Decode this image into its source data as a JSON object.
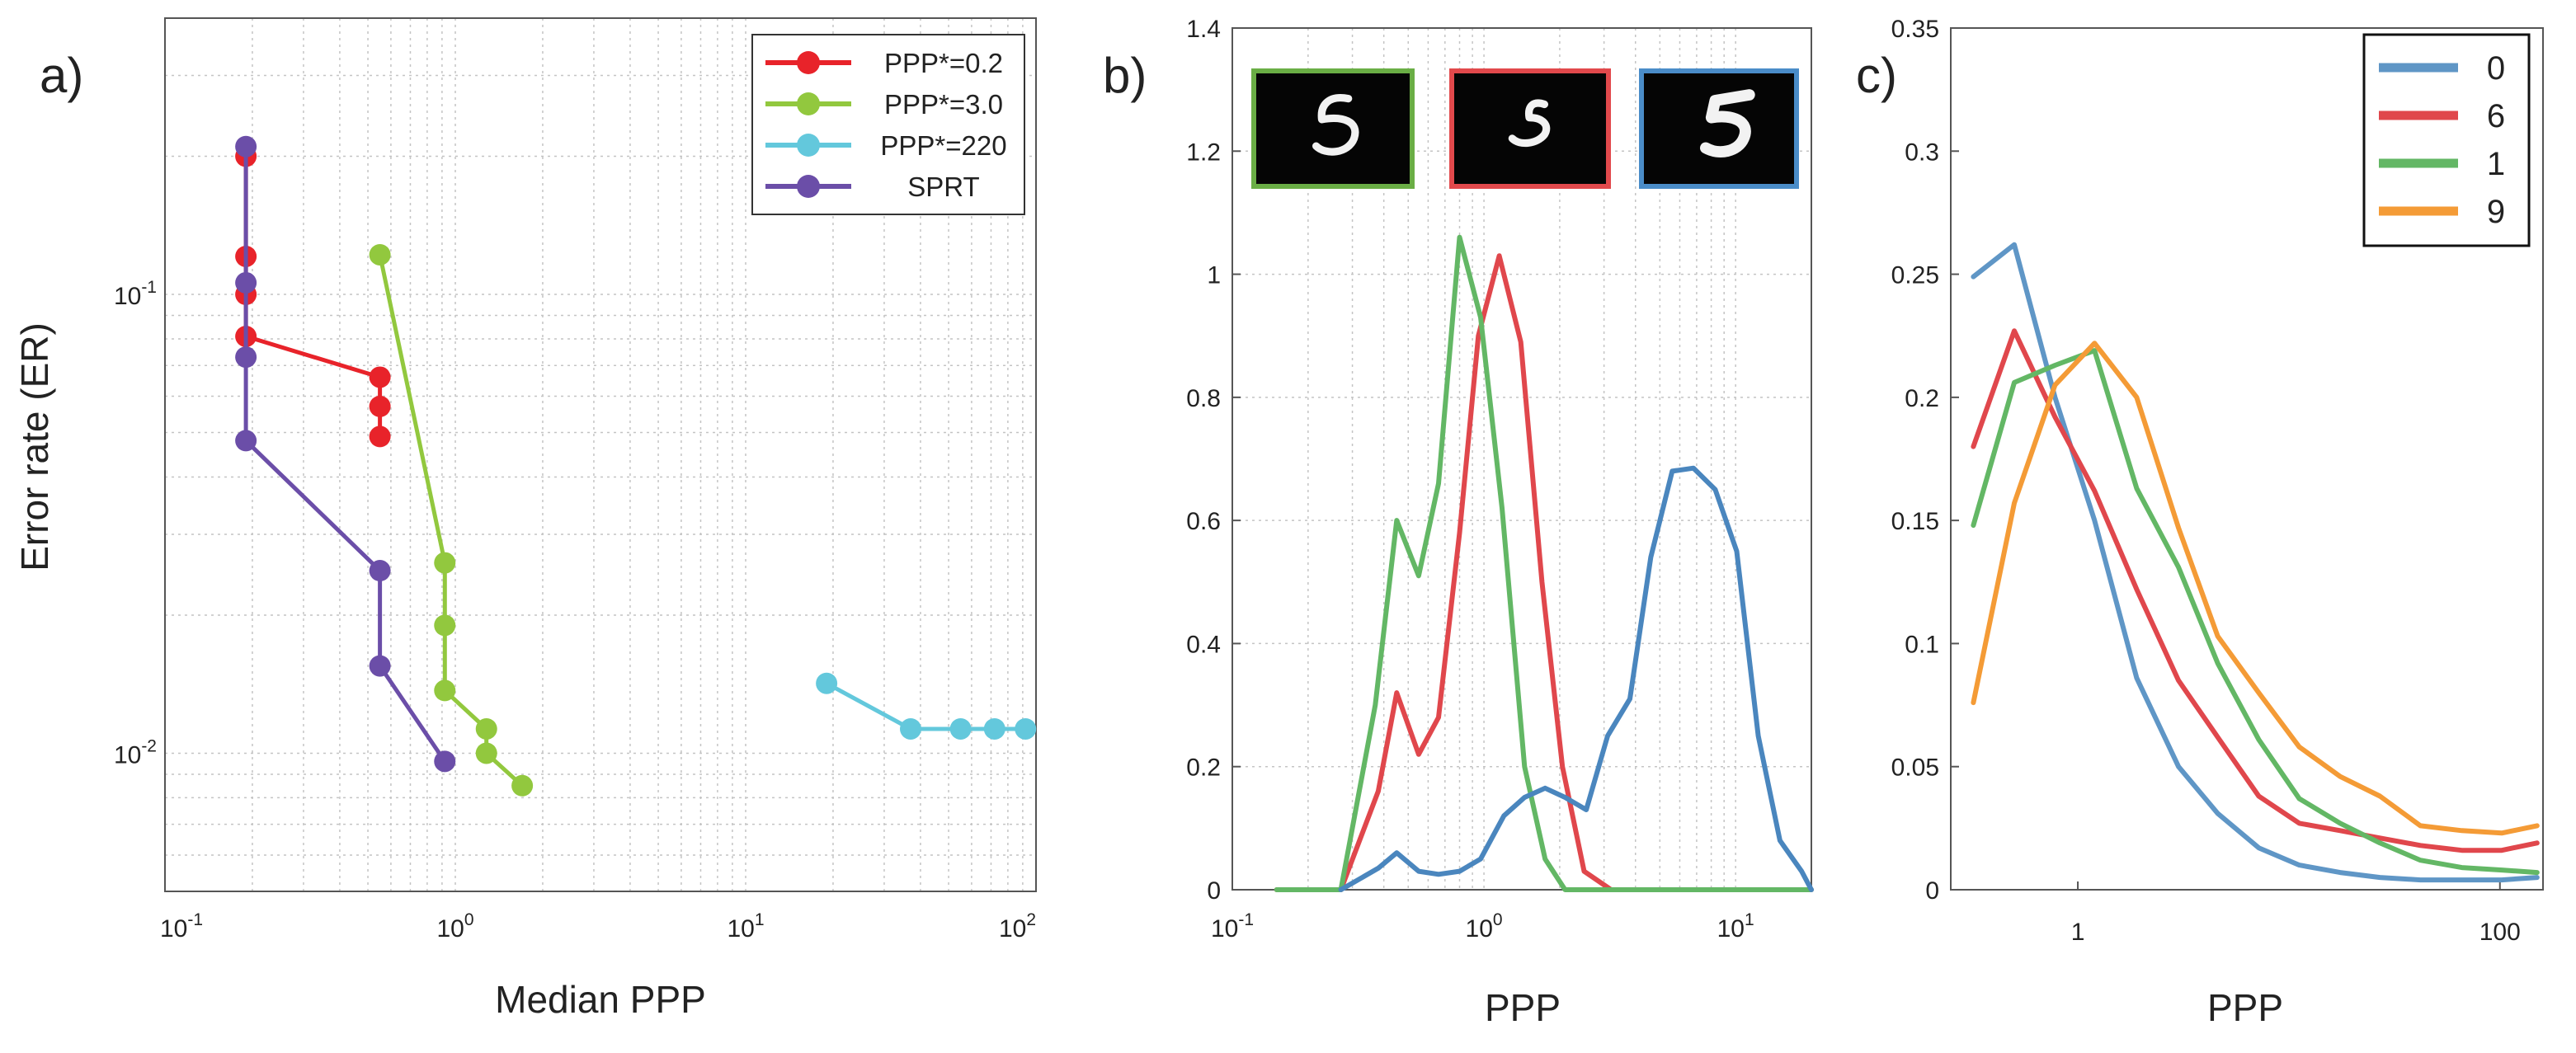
{
  "panels": {
    "a": {
      "letter": "a)",
      "xlabel": "Median PPP",
      "ylabel": "Error rate (ER)"
    },
    "b": {
      "letter": "b)",
      "xlabel": "PPP"
    },
    "c": {
      "letter": "c)",
      "xlabel": "PPP"
    }
  },
  "chart_data": [
    {
      "type": "line",
      "panel": "a",
      "xlabel": "Median PPP",
      "ylabel": "Error rate (ER)",
      "xscale": "log",
      "yscale": "log",
      "xlim": [
        0.1,
        100
      ],
      "ylim": [
        0.005,
        0.4
      ],
      "grid": true,
      "legend_position": "top-right",
      "x_ticks": [
        {
          "base": "10",
          "exp": "-1"
        },
        {
          "base": "10",
          "exp": "0"
        },
        {
          "base": "10",
          "exp": "1"
        },
        {
          "base": "10",
          "exp": "2"
        }
      ],
      "y_ticks": [
        {
          "value": 0.01,
          "base": "10",
          "exp": "-2"
        },
        {
          "value": 0.1,
          "base": "10",
          "exp": "-1"
        }
      ],
      "series": [
        {
          "name": "PPP*=0.2",
          "color": "#e8232a",
          "points": [
            [
              0.19,
              0.2
            ],
            [
              0.19,
              0.121
            ],
            [
              0.19,
              0.1
            ],
            [
              0.19,
              0.081
            ],
            [
              0.55,
              0.066
            ],
            [
              0.55,
              0.057
            ],
            [
              0.55,
              0.049
            ]
          ]
        },
        {
          "name": "PPP*=3.0",
          "color": "#92c83e",
          "points": [
            [
              0.55,
              0.122
            ],
            [
              0.92,
              0.026
            ],
            [
              0.92,
              0.019
            ],
            [
              0.92,
              0.0137
            ],
            [
              1.28,
              0.0113
            ],
            [
              1.28,
              0.01
            ],
            [
              1.7,
              0.0085
            ]
          ]
        },
        {
          "name": "PPP*=220",
          "color": "#63c8dc",
          "points": [
            [
              19,
              0.0142
            ],
            [
              37,
              0.0113
            ],
            [
              55,
              0.0113
            ],
            [
              72,
              0.0113
            ],
            [
              92,
              0.0113
            ]
          ]
        },
        {
          "name": "SPRT",
          "color": "#6b4ea8",
          "points": [
            [
              0.19,
              0.21
            ],
            [
              0.19,
              0.106
            ],
            [
              0.19,
              0.073
            ],
            [
              0.19,
              0.048
            ],
            [
              0.55,
              0.025
            ],
            [
              0.55,
              0.0155
            ],
            [
              0.92,
              0.0096
            ]
          ]
        }
      ]
    },
    {
      "type": "line",
      "panel": "b",
      "xlabel": "PPP",
      "xscale": "log",
      "xlim": [
        0.1,
        20
      ],
      "ylim": [
        0,
        1.4
      ],
      "grid": true,
      "x_ticks": [
        {
          "value": 0.1,
          "base": "10",
          "exp": "-1"
        },
        {
          "value": 1,
          "base": "10",
          "exp": "0"
        },
        {
          "value": 10,
          "base": "10",
          "exp": "1"
        }
      ],
      "y_ticks": [
        "0",
        "0.2",
        "0.4",
        "0.6",
        "0.8",
        "1",
        "1.2",
        "1.4"
      ],
      "inset_images": [
        {
          "digit": "5",
          "frame_color": "#6aae45"
        },
        {
          "digit": "5",
          "frame_color": "#e2494c"
        },
        {
          "digit": "5",
          "frame_color": "#4a8cc8"
        }
      ],
      "series": [
        {
          "color": "#e0474c",
          "points": [
            [
              0.15,
              0
            ],
            [
              0.27,
              0
            ],
            [
              0.38,
              0.16
            ],
            [
              0.45,
              0.32
            ],
            [
              0.55,
              0.22
            ],
            [
              0.66,
              0.28
            ],
            [
              0.8,
              0.58
            ],
            [
              0.95,
              0.9
            ],
            [
              1.15,
              1.03
            ],
            [
              1.4,
              0.89
            ],
            [
              1.7,
              0.5
            ],
            [
              2.05,
              0.2
            ],
            [
              2.5,
              0.03
            ],
            [
              3.2,
              0
            ],
            [
              20,
              0
            ]
          ]
        },
        {
          "color": "#63b765",
          "points": [
            [
              0.15,
              0
            ],
            [
              0.27,
              0
            ],
            [
              0.37,
              0.3
            ],
            [
              0.45,
              0.6
            ],
            [
              0.55,
              0.51
            ],
            [
              0.66,
              0.66
            ],
            [
              0.8,
              1.06
            ],
            [
              0.97,
              0.93
            ],
            [
              1.18,
              0.62
            ],
            [
              1.45,
              0.2
            ],
            [
              1.75,
              0.05
            ],
            [
              2.1,
              0
            ],
            [
              20,
              0
            ]
          ]
        },
        {
          "color": "#4a86be",
          "points": [
            [
              0.27,
              0
            ],
            [
              0.38,
              0.035
            ],
            [
              0.45,
              0.06
            ],
            [
              0.55,
              0.03
            ],
            [
              0.66,
              0.025
            ],
            [
              0.8,
              0.03
            ],
            [
              0.97,
              0.05
            ],
            [
              1.2,
              0.12
            ],
            [
              1.45,
              0.15
            ],
            [
              1.75,
              0.165
            ],
            [
              2.1,
              0.15
            ],
            [
              2.55,
              0.13
            ],
            [
              3.1,
              0.25
            ],
            [
              3.8,
              0.31
            ],
            [
              4.6,
              0.54
            ],
            [
              5.6,
              0.68
            ],
            [
              6.8,
              0.685
            ],
            [
              8.3,
              0.65
            ],
            [
              10.1,
              0.55
            ],
            [
              12.3,
              0.25
            ],
            [
              15,
              0.08
            ],
            [
              18.3,
              0.03
            ],
            [
              20,
              0
            ]
          ]
        }
      ]
    },
    {
      "type": "line",
      "panel": "c",
      "xlabel": "PPP",
      "xscale": "log",
      "xlim": [
        0.25,
        160
      ],
      "ylim": [
        0,
        0.35
      ],
      "grid": false,
      "legend_position": "top-right",
      "x_ticks": [
        {
          "value": 1,
          "label": "1"
        },
        {
          "value": 100,
          "label": "100"
        }
      ],
      "y_ticks": [
        "0",
        "0.05",
        "0.1",
        "0.15",
        "0.2",
        "0.25",
        "0.3",
        "0.35"
      ],
      "series": [
        {
          "name": "0",
          "color": "#5f96c6",
          "points": [
            [
              0.32,
              0.249
            ],
            [
              0.5,
              0.262
            ],
            [
              0.78,
              0.2
            ],
            [
              1.2,
              0.15
            ],
            [
              1.9,
              0.086
            ],
            [
              3,
              0.05
            ],
            [
              4.6,
              0.031
            ],
            [
              7.2,
              0.017
            ],
            [
              11.2,
              0.01
            ],
            [
              17.5,
              0.007
            ],
            [
              27,
              0.005
            ],
            [
              42,
              0.004
            ],
            [
              66,
              0.004
            ],
            [
              102,
              0.004
            ],
            [
              150,
              0.005
            ]
          ]
        },
        {
          "name": "6",
          "color": "#e0474c",
          "points": [
            [
              0.32,
              0.18
            ],
            [
              0.5,
              0.227
            ],
            [
              0.78,
              0.192
            ],
            [
              1.2,
              0.162
            ],
            [
              1.9,
              0.122
            ],
            [
              3,
              0.085
            ],
            [
              4.6,
              0.062
            ],
            [
              7.2,
              0.038
            ],
            [
              11.2,
              0.027
            ],
            [
              17.5,
              0.024
            ],
            [
              27,
              0.021
            ],
            [
              42,
              0.018
            ],
            [
              66,
              0.016
            ],
            [
              102,
              0.016
            ],
            [
              150,
              0.019
            ]
          ]
        },
        {
          "name": "1",
          "color": "#63b765",
          "points": [
            [
              0.32,
              0.148
            ],
            [
              0.5,
              0.206
            ],
            [
              0.78,
              0.213
            ],
            [
              1.2,
              0.219
            ],
            [
              1.9,
              0.163
            ],
            [
              3,
              0.131
            ],
            [
              4.6,
              0.092
            ],
            [
              7.2,
              0.061
            ],
            [
              11.2,
              0.037
            ],
            [
              17.5,
              0.027
            ],
            [
              27,
              0.019
            ],
            [
              42,
              0.012
            ],
            [
              66,
              0.009
            ],
            [
              102,
              0.008
            ],
            [
              150,
              0.007
            ]
          ]
        },
        {
          "name": "9",
          "color": "#f49b36",
          "points": [
            [
              0.32,
              0.076
            ],
            [
              0.5,
              0.157
            ],
            [
              0.78,
              0.205
            ],
            [
              1.2,
              0.222
            ],
            [
              1.9,
              0.2
            ],
            [
              3,
              0.147
            ],
            [
              4.6,
              0.103
            ],
            [
              7.2,
              0.08
            ],
            [
              11.2,
              0.058
            ],
            [
              17.5,
              0.046
            ],
            [
              27,
              0.038
            ],
            [
              42,
              0.026
            ],
            [
              66,
              0.024
            ],
            [
              102,
              0.023
            ],
            [
              150,
              0.026
            ]
          ]
        }
      ]
    }
  ]
}
